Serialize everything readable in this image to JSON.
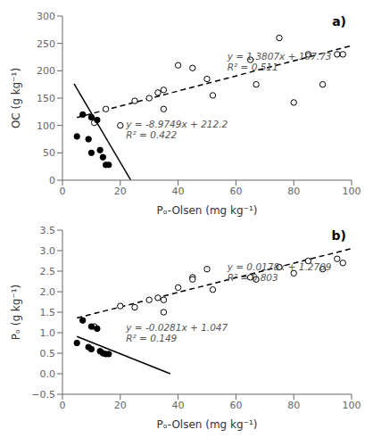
{
  "chart_data": [
    {
      "type": "scatter",
      "title": "a)",
      "xlabel": "Pₒ-Olsen (mg kg⁻¹)",
      "ylabel": "OC (g kg⁻¹)",
      "xlim": [
        0,
        100
      ],
      "ylim": [
        0,
        300
      ],
      "xticks": [
        0,
        20,
        40,
        60,
        80,
        100
      ],
      "yticks": [
        0,
        50,
        100,
        150,
        200,
        250,
        300
      ],
      "grid": false,
      "series": [
        {
          "type": "scatter",
          "marker": "circle_open",
          "color": "black",
          "x": [
            11,
            15,
            20,
            25,
            30,
            33,
            35,
            35,
            40,
            45,
            50,
            52,
            65,
            67,
            75,
            80,
            85,
            90,
            95,
            97
          ],
          "values": [
            105,
            130,
            100,
            145,
            150,
            160,
            165,
            130,
            210,
            205,
            185,
            155,
            220,
            175,
            260,
            142,
            230,
            175,
            230,
            230
          ]
        },
        {
          "type": "scatter",
          "marker": "circle",
          "color": "black",
          "x": [
            5,
            7,
            9,
            10,
            10,
            12,
            13,
            14,
            15,
            16
          ],
          "values": [
            80,
            120,
            75,
            115,
            50,
            110,
            55,
            42,
            28,
            28
          ]
        },
        {
          "type": "line",
          "line_style": "dashed",
          "color": "black",
          "x": [
            5,
            100
          ],
          "values": [
            114.6335,
            245.8
          ]
        },
        {
          "type": "line",
          "line_style": "solid",
          "color": "black",
          "x": [
            4,
            23.6
          ],
          "values": [
            176.3004,
            0.39236
          ]
        }
      ],
      "annotations": [
        {
          "text": [
            "y = 1.3807x + 107.73",
            "R² = 0.511"
          ],
          "x": 57,
          "y": 195,
          "color": "#555555"
        },
        {
          "text": [
            "y = -8.9749x + 212.2",
            "R² = 0.422"
          ],
          "x": 22,
          "y": 72,
          "color": "#555555"
        }
      ]
    },
    {
      "type": "scatter",
      "title": "b)",
      "xlabel": "Pₒ-Olsen (mg kg⁻¹)",
      "ylabel": "Pₒ (g kg⁻¹)",
      "xlim": [
        0,
        100
      ],
      "ylim": [
        -0.5,
        3.5
      ],
      "xticks": [
        0,
        20,
        40,
        60,
        80,
        100
      ],
      "yticks": [
        {
          "value": -0.5,
          "label": "−0.5"
        },
        {
          "value": 0,
          "label": "0.0"
        },
        0.5,
        {
          "value": 1,
          "label": "1.0"
        },
        1.5,
        {
          "value": 2,
          "label": "2.0"
        },
        2.5,
        {
          "value": 3,
          "label": "3.0"
        },
        3.5
      ],
      "grid": false,
      "series": [
        {
          "type": "scatter",
          "marker": "circle_open",
          "color": "black",
          "x": [
            11,
            20,
            25,
            30,
            33,
            35,
            35,
            40,
            45,
            45,
            50,
            52,
            65,
            67,
            75,
            80,
            85,
            90,
            95,
            97
          ],
          "values": [
            1.15,
            1.65,
            1.62,
            1.8,
            1.85,
            1.8,
            1.5,
            2.1,
            2.35,
            2.3,
            2.55,
            2.05,
            2.35,
            2.3,
            2.6,
            2.45,
            2.75,
            2.55,
            2.8,
            2.7
          ]
        },
        {
          "type": "scatter",
          "marker": "circle",
          "color": "black",
          "x": [
            5,
            7,
            9,
            10,
            10,
            12,
            13,
            14,
            15,
            16
          ],
          "values": [
            0.75,
            1.3,
            0.65,
            1.15,
            0.6,
            1.1,
            0.55,
            0.5,
            0.48,
            0.48
          ]
        },
        {
          "type": "line",
          "line_style": "dashed",
          "color": "black",
          "x": [
            5,
            100
          ],
          "values": [
            1.3599,
            3.0509
          ]
        },
        {
          "type": "line",
          "line_style": "solid",
          "color": "black",
          "x": [
            5,
            37.3
          ],
          "values": [
            0.9065,
            -0.00113
          ]
        }
      ],
      "annotations": [
        {
          "text": [
            "y = 0.0178x + 1.2709",
            "R² = 0.803"
          ],
          "x": 57,
          "y": 2.2,
          "color": "#555555"
        },
        {
          "text": [
            "y = -0.0281x + 1.047",
            "R² = 0.149"
          ],
          "x": 22,
          "y": 0.72,
          "color": "#555555"
        }
      ]
    }
  ]
}
